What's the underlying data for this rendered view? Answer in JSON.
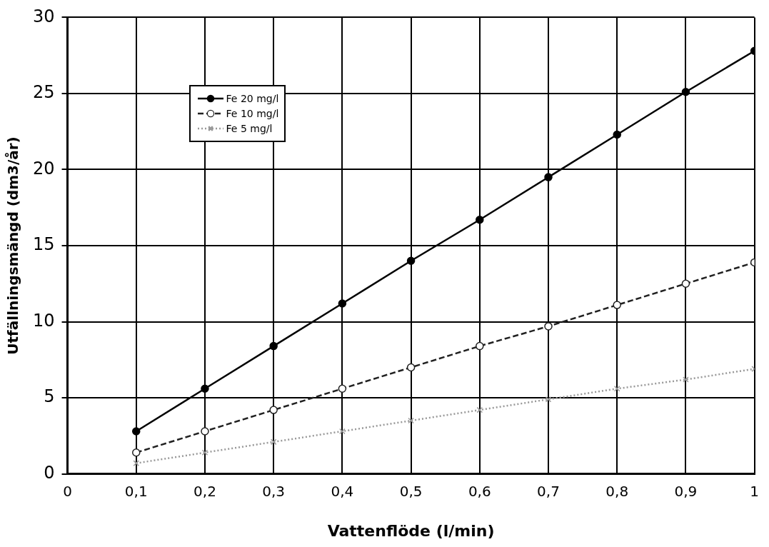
{
  "chart_data": {
    "type": "line",
    "xlabel": "Vattenflöde (l/min)",
    "ylabel": "Utfällningsmängd (dm3/år)",
    "x": [
      0.1,
      0.2,
      0.3,
      0.4,
      0.5,
      0.6,
      0.7,
      0.8,
      0.9,
      1
    ],
    "series": [
      {
        "name": "Fe 20 mg/l",
        "color": "#000000",
        "marker": "circle",
        "line_style": "solid",
        "values": [
          2.8,
          5.6,
          8.4,
          11.2,
          14,
          16.7,
          19.5,
          22.3,
          25.1,
          27.8
        ]
      },
      {
        "name": "Fe 10 mg/l",
        "color": "#222222",
        "marker": "circle",
        "line_style": "dashed",
        "values": [
          1.4,
          2.8,
          4.2,
          5.6,
          7,
          8.4,
          9.7,
          11.1,
          12.5,
          13.9
        ]
      },
      {
        "name": "Fe 5 mg/l",
        "color": "#999999",
        "marker": "cross",
        "line_style": "dotted",
        "values": [
          0.7,
          1.4,
          2.1,
          2.8,
          3.5,
          4.2,
          4.9,
          5.6,
          6.2,
          6.9
        ]
      }
    ],
    "xlim": [
      0,
      1
    ],
    "xticks": [
      0,
      {
        "value": 0.1,
        "label": "0,1"
      },
      {
        "value": 0.2,
        "label": "0,2"
      },
      {
        "value": 0.3,
        "label": "0,3"
      },
      {
        "value": 0.4,
        "label": "0,4"
      },
      {
        "value": 0.5,
        "label": "0,5"
      },
      {
        "value": 0.6,
        "label": "0,6"
      },
      {
        "value": 0.7,
        "label": "0,7"
      },
      {
        "value": 0.8,
        "label": "0,8"
      },
      {
        "value": 0.9,
        "label": "0,9"
      },
      1
    ],
    "ylim": [
      0,
      30
    ],
    "yticks": [
      0,
      5,
      10,
      15,
      20,
      25,
      30
    ],
    "grid": true,
    "legend": "top left"
  }
}
